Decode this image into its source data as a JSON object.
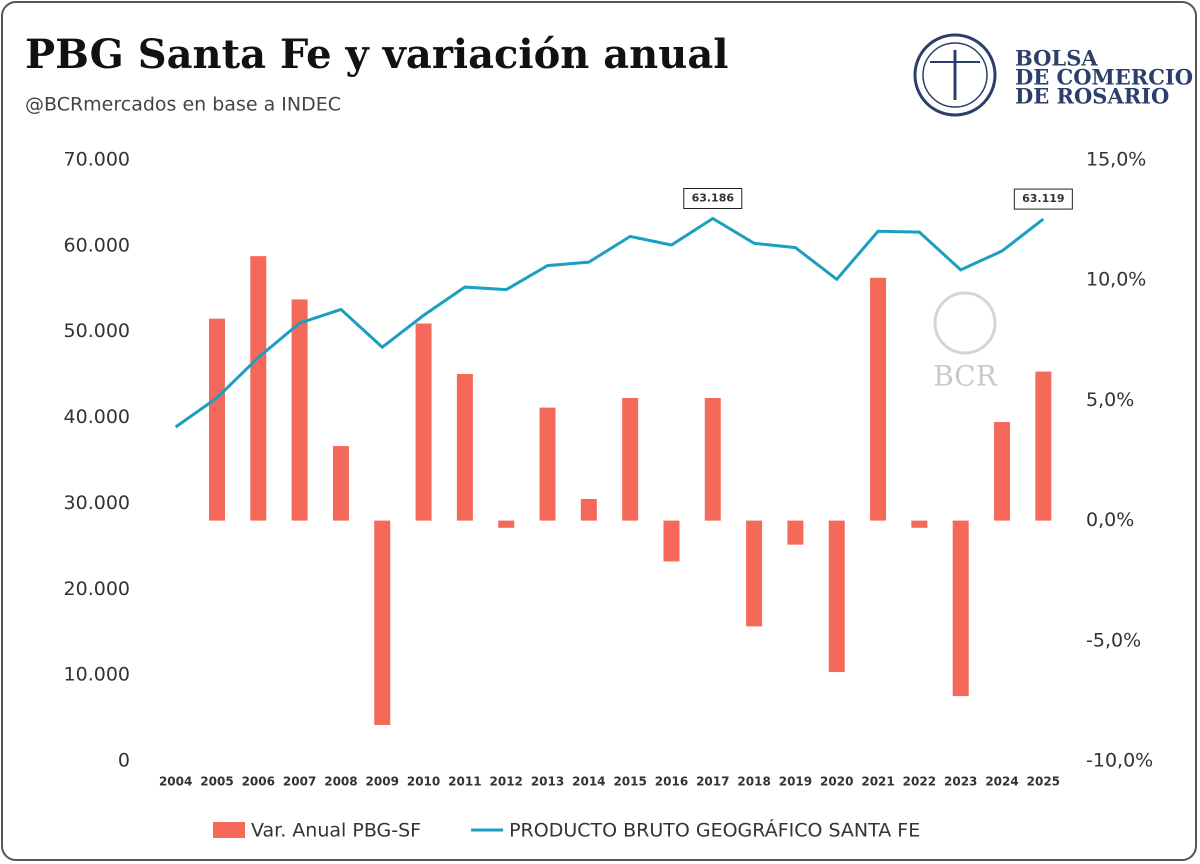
{
  "chart_data": {
    "type": "bar-line",
    "title": "PBG Santa Fe y variación anual",
    "subtitle": "@BCRmercados en base a INDEC",
    "logo": [
      "BOLSA",
      "DE COMERCIO",
      "DE ROSARIO"
    ],
    "watermark": "BCR",
    "categories": [
      "2004",
      "2005",
      "2006",
      "2007",
      "2008",
      "2009",
      "2010",
      "2011",
      "2012",
      "2013",
      "2014",
      "2015",
      "2016",
      "2017",
      "2018",
      "2019",
      "2020",
      "2021",
      "2022",
      "2023",
      "2024",
      "2025"
    ],
    "series": [
      {
        "name": "Var. Anual PBG-SF",
        "type": "bar",
        "axis": "y2",
        "color": "#f4695a",
        "values": [
          null,
          8.4,
          11.0,
          9.2,
          3.1,
          -8.5,
          8.2,
          6.1,
          -0.3,
          4.7,
          0.9,
          5.1,
          -1.7,
          5.1,
          -4.4,
          -1.0,
          -6.3,
          10.1,
          -0.3,
          -7.3,
          4.1,
          6.2
        ]
      },
      {
        "name": "PRODUCTO BRUTO GEOGRÁFICO SANTA FE",
        "type": "line",
        "color": "#1a9fc0",
        "values": [
          38900,
          42300,
          47000,
          51000,
          52600,
          48200,
          51900,
          55200,
          54900,
          57700,
          58100,
          61100,
          60100,
          63186,
          60300,
          59800,
          56100,
          61700,
          61600,
          57200,
          59400,
          63119
        ],
        "value_labels": [
          null,
          null,
          null,
          null,
          null,
          null,
          null,
          null,
          null,
          null,
          null,
          null,
          null,
          "63.186",
          null,
          null,
          null,
          null,
          null,
          null,
          null,
          "63.119"
        ]
      }
    ],
    "ylim": [
      0,
      70000
    ],
    "yticks": [
      0,
      {
        "value": 10000,
        "label": "10.000"
      },
      {
        "value": 20000,
        "label": "20.000"
      },
      {
        "value": 30000,
        "label": "30.000"
      },
      {
        "value": 40000,
        "label": "40.000"
      },
      {
        "value": 50000,
        "label": "50.000"
      },
      {
        "value": 60000,
        "label": "60.000"
      },
      {
        "value": 70000,
        "label": "70.000"
      }
    ],
    "y2lim": [
      -10,
      15
    ],
    "y2ticks": [
      {
        "value": -10,
        "label": "-10,0%"
      },
      {
        "value": -5,
        "label": "-5,0%"
      },
      {
        "value": 0,
        "label": "0,0%"
      },
      {
        "value": 5,
        "label": "5,0%"
      },
      {
        "value": 10,
        "label": "10,0%"
      },
      {
        "value": 15,
        "label": "15,0%"
      }
    ],
    "legend": "bottom"
  }
}
